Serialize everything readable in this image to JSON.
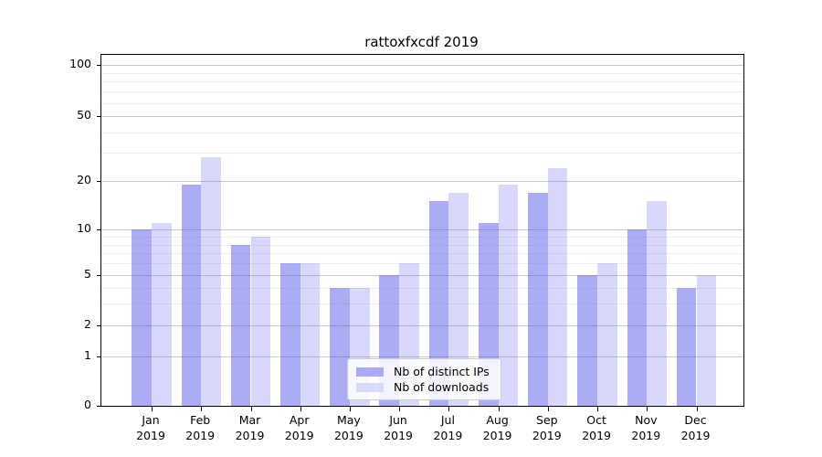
{
  "chart_data": {
    "type": "bar",
    "title": "rattoxfxcdf 2019",
    "categories": [
      "Jan",
      "Feb",
      "Mar",
      "Apr",
      "May",
      "Jun",
      "Jul",
      "Aug",
      "Sep",
      "Oct",
      "Nov",
      "Dec"
    ],
    "category_year": "2019",
    "series": [
      {
        "name": "Nb of distinct IPs",
        "values": [
          10,
          19,
          8,
          6,
          4,
          5,
          15,
          11,
          17,
          5,
          10,
          4
        ],
        "fill_rgba": "rgba(88,88,238,0.5)",
        "legend_color": "#abaaf6"
      },
      {
        "name": "Nb of downloads",
        "values": [
          11,
          28,
          9,
          6,
          4,
          6,
          17,
          19,
          24,
          6,
          15,
          5
        ],
        "fill_rgba": "rgba(100,100,235,0.25)",
        "legend_color": "#d9d9fa"
      }
    ],
    "xlabel": "",
    "ylabel": "",
    "y_ticks": [
      0,
      1,
      2,
      5,
      10,
      20,
      50,
      100
    ],
    "y_minor_gridlines": [
      3,
      4,
      6,
      7,
      8,
      9,
      30,
      40,
      60,
      70,
      80,
      90
    ],
    "y_scale": "symlog-like (log above 1, linear 0-1)",
    "ylim": [
      0,
      115
    ],
    "grid": true,
    "legend_position": "lower center"
  }
}
